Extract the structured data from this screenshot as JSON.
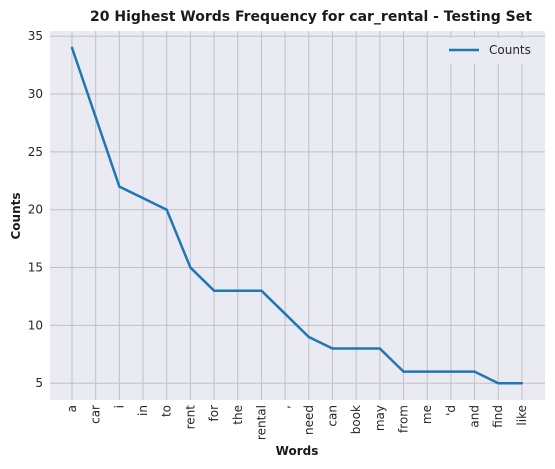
{
  "chart_data": {
    "type": "line",
    "title": "20 Highest Words Frequency for car_rental - Testing Set",
    "xlabel": "Words",
    "ylabel": "Counts",
    "categories": [
      "a",
      "car",
      "i",
      "in",
      "to",
      "rent",
      "for",
      "the",
      "rental",
      ",",
      "need",
      "can",
      "book",
      "may",
      "from",
      "me",
      "'d",
      "and",
      "find",
      "like"
    ],
    "series": [
      {
        "name": "Counts",
        "values": [
          34,
          28,
          22,
          21,
          20,
          15,
          13,
          13,
          13,
          11,
          9,
          8,
          8,
          8,
          6,
          6,
          6,
          6,
          5,
          5
        ]
      }
    ],
    "ylim": [
      3.55,
      35.45
    ],
    "yticks": [
      5,
      10,
      15,
      20,
      25,
      30,
      35
    ],
    "grid": true,
    "legend_position": "top-right",
    "colors": {
      "line": "#1f77b4",
      "background": "#eaeaf2",
      "grid": "#c0c0c8"
    }
  }
}
